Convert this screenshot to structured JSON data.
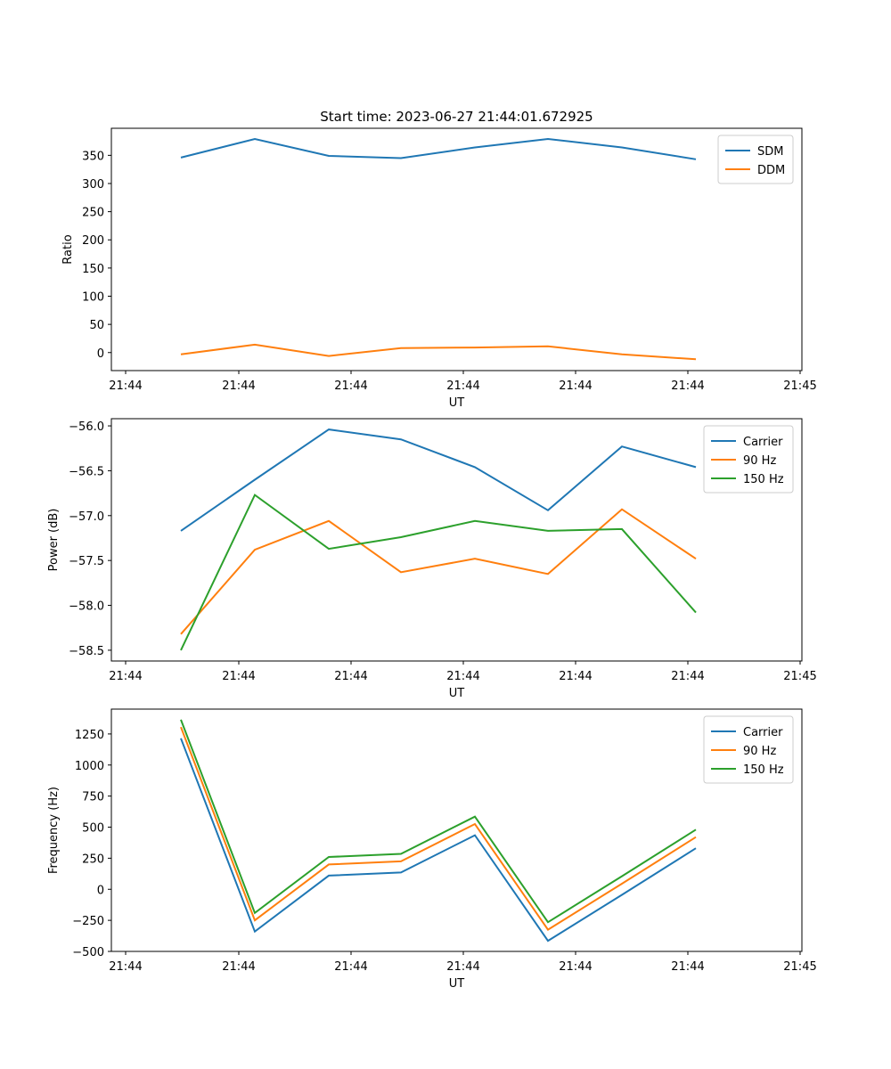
{
  "figure": {
    "title": "Start time: 2023-06-27 21:44:01.672925"
  },
  "chart_data": [
    {
      "type": "line",
      "title": "Start time: 2023-06-27 21:44:01.672925",
      "xlabel": "UT",
      "ylabel": "Ratio",
      "x_tick_labels": [
        "21:44",
        "21:44",
        "21:44",
        "21:44",
        "21:44",
        "21:44",
        "21:45"
      ],
      "yticks": [
        0,
        50,
        100,
        150,
        200,
        250,
        300,
        350
      ],
      "ylim": [
        -32,
        398
      ],
      "grid": false,
      "legend_position": "upper right",
      "series": [
        {
          "name": "SDM",
          "color": "#1f77b4",
          "values": [
            346,
            379,
            349,
            345,
            364,
            379,
            364,
            343
          ]
        },
        {
          "name": "DDM",
          "color": "#ff7f0e",
          "values": [
            -3,
            14,
            -6,
            8,
            9,
            11,
            -3,
            -12
          ]
        }
      ]
    },
    {
      "type": "line",
      "title": "",
      "xlabel": "UT",
      "ylabel": "Power (dB)",
      "x_tick_labels": [
        "21:44",
        "21:44",
        "21:44",
        "21:44",
        "21:44",
        "21:44",
        "21:45"
      ],
      "yticks": [
        -58.5,
        -58.0,
        -57.5,
        -57.0,
        -56.5,
        -56.0
      ],
      "ytick_labels": [
        "−58.5",
        "−58.0",
        "−57.5",
        "−57.0",
        "−56.5",
        "−56.0"
      ],
      "ylim": [
        -58.62,
        -55.92
      ],
      "grid": false,
      "legend_position": "upper right",
      "series": [
        {
          "name": "Carrier",
          "color": "#1f77b4",
          "values": [
            -57.17,
            -56.6,
            -56.04,
            -56.15,
            -56.46,
            -56.94,
            -56.23,
            -56.46
          ]
        },
        {
          "name": "90 Hz",
          "color": "#ff7f0e",
          "values": [
            -58.32,
            -57.38,
            -57.06,
            -57.63,
            -57.48,
            -57.65,
            -56.93,
            -57.48
          ]
        },
        {
          "name": "150 Hz",
          "color": "#2ca02c",
          "values": [
            -58.5,
            -56.77,
            -57.37,
            -57.24,
            -57.06,
            -57.17,
            -57.15,
            -58.08
          ]
        }
      ]
    },
    {
      "type": "line",
      "title": "",
      "xlabel": "UT",
      "ylabel": "Frequency (Hz)",
      "x_tick_labels": [
        "21:44",
        "21:44",
        "21:44",
        "21:44",
        "21:44",
        "21:44",
        "21:45"
      ],
      "yticks": [
        -500,
        -250,
        0,
        250,
        500,
        750,
        1000,
        1250
      ],
      "ytick_labels": [
        "−500",
        "−250",
        "0",
        "250",
        "500",
        "750",
        "1000",
        "1250"
      ],
      "ylim": [
        -500,
        1450
      ],
      "grid": false,
      "legend_position": "upper right",
      "series": [
        {
          "name": "Carrier",
          "color": "#1f77b4",
          "values": [
            1215,
            -340,
            110,
            135,
            435,
            -415,
            -45,
            330
          ]
        },
        {
          "name": "90 Hz",
          "color": "#ff7f0e",
          "values": [
            1305,
            -250,
            200,
            225,
            525,
            -325,
            45,
            420
          ]
        },
        {
          "name": "150 Hz",
          "color": "#2ca02c",
          "values": [
            1365,
            -190,
            260,
            285,
            585,
            -265,
            105,
            480
          ]
        }
      ]
    }
  ]
}
